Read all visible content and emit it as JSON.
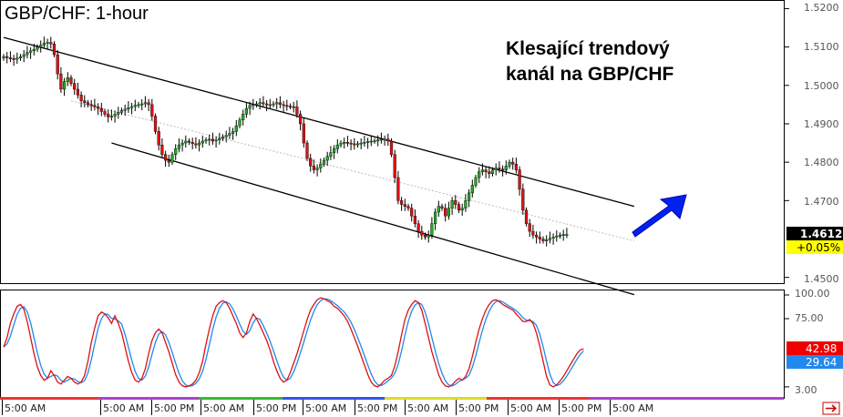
{
  "chart_data": {
    "type": "candlestick",
    "title": "GBP/CHF: 1-hour",
    "annotation": "Klesající trendový kanál na GBP/CHF",
    "annotation_lines": [
      "Klesající trendový",
      "kanál na GBP/CHF"
    ],
    "y_ticks": [
      "1.5200",
      "1.5100",
      "1.5000",
      "1.4900",
      "1.4800",
      "1.4700",
      "1.4500"
    ],
    "ylim": [
      1.4485,
      1.522
    ],
    "price_badge": "1.4612",
    "change_badge": "+0.05%",
    "x_ticks": [
      "5:00 AM",
      "5:00 AM",
      "5:00 PM",
      "5:00 AM",
      "5:00 PM",
      "5:00 AM",
      "5:00 PM",
      "5:00 AM",
      "5:00 PM",
      "5:00 AM",
      "5:00 PM",
      "5:00 AM"
    ],
    "channel_upper": [
      [
        0,
        1.5125
      ],
      [
        187,
        1.4685
      ]
    ],
    "channel_lower": [
      [
        32,
        1.485
      ],
      [
        187,
        1.4455
      ]
    ],
    "channel_mid": [
      [
        20,
        1.496
      ],
      [
        187,
        1.4595
      ]
    ],
    "closes": [
      1.5075,
      1.5072,
      1.507,
      1.5068,
      1.5071,
      1.5075,
      1.508,
      1.5086,
      1.509,
      1.5094,
      1.51,
      1.5105,
      1.511,
      1.5112,
      1.5108,
      1.508,
      1.503,
      1.499,
      1.501,
      1.502,
      1.5005,
      1.499,
      1.4975,
      1.496,
      1.4955,
      1.495,
      1.4948,
      1.4944,
      1.494,
      1.4932,
      1.4925,
      1.4918,
      1.492,
      1.4925,
      1.493,
      1.4935,
      1.4938,
      1.4942,
      1.4945,
      1.4948,
      1.495,
      1.4952,
      1.4955,
      1.495,
      1.492,
      1.488,
      1.4845,
      1.482,
      1.4805,
      1.48,
      1.482,
      1.4835,
      1.4845,
      1.485,
      1.4855,
      1.4852,
      1.4848,
      1.4845,
      1.485,
      1.4855,
      1.4858,
      1.486,
      1.4855,
      1.4858,
      1.4862,
      1.4866,
      1.487,
      1.4875,
      1.488,
      1.4895,
      1.491,
      1.4925,
      1.494,
      1.4948,
      1.495,
      1.4952,
      1.4955,
      1.4952,
      1.495,
      1.495,
      1.4952,
      1.4955,
      1.495,
      1.4948,
      1.4946,
      1.4945,
      1.4944,
      1.4925,
      1.49,
      1.485,
      1.481,
      1.479,
      1.478,
      1.4785,
      1.4795,
      1.4805,
      1.4815,
      1.4825,
      1.4835,
      1.4845,
      1.485,
      1.4852,
      1.485,
      1.4848,
      1.4845,
      1.4848,
      1.485,
      1.4852,
      1.4854,
      1.4855,
      1.4856,
      1.4858,
      1.486,
      1.486,
      1.4855,
      1.482,
      1.476,
      1.47,
      1.469,
      1.4685,
      1.468,
      1.466,
      1.464,
      1.462,
      1.461,
      1.4605,
      1.461,
      1.464,
      1.467,
      1.4685,
      1.468,
      1.466,
      1.468,
      1.47,
      1.469,
      1.4675,
      1.468,
      1.47,
      1.472,
      1.474,
      1.476,
      1.4775,
      1.478,
      1.4775,
      1.477,
      1.478,
      1.4785,
      1.4782,
      1.478,
      1.479,
      1.48,
      1.4795,
      1.478,
      1.473,
      1.4675,
      1.464,
      1.462,
      1.461,
      1.4605,
      1.46,
      1.4595,
      1.4598,
      1.4602,
      1.4605,
      1.4608,
      1.461,
      1.4612,
      1.4612
    ],
    "stochastic": {
      "ylim": [
        0,
        100
      ],
      "y_ticks": [
        "100.00",
        "75.00",
        "3.00"
      ],
      "k_badge": "42.98",
      "d_badge": "29.64",
      "k": [
        45,
        55,
        70,
        80,
        88,
        90,
        85,
        72,
        55,
        38,
        24,
        15,
        10,
        12,
        20,
        15,
        8,
        6,
        10,
        14,
        12,
        8,
        6,
        8,
        15,
        30,
        50,
        65,
        78,
        82,
        80,
        76,
        70,
        78,
        70,
        60,
        45,
        30,
        18,
        10,
        8,
        12,
        22,
        38,
        52,
        60,
        64,
        60,
        50,
        40,
        28,
        16,
        8,
        4,
        3,
        4,
        6,
        10,
        18,
        30,
        48,
        64,
        78,
        88,
        92,
        94,
        92,
        86,
        78,
        70,
        60,
        55,
        60,
        72,
        80,
        75,
        68,
        60,
        52,
        42,
        30,
        20,
        12,
        8,
        10,
        18,
        28,
        38,
        50,
        62,
        74,
        84,
        90,
        95,
        97,
        96,
        94,
        92,
        88,
        86,
        82,
        78,
        72,
        64,
        55,
        46,
        36,
        26,
        16,
        8,
        4,
        3,
        6,
        10,
        12,
        15,
        25,
        40,
        58,
        74,
        84,
        90,
        94,
        92,
        84,
        70,
        55,
        40,
        28,
        16,
        8,
        4,
        3,
        5,
        9,
        12,
        10,
        14,
        22,
        35,
        50,
        64,
        75,
        84,
        90,
        94,
        95,
        93,
        90,
        88,
        86,
        84,
        80,
        76,
        72,
        72,
        74,
        70,
        60,
        46,
        30,
        14,
        5,
        3,
        5,
        9,
        14,
        20,
        26,
        32,
        38,
        42,
        43
      ]
    }
  }
}
